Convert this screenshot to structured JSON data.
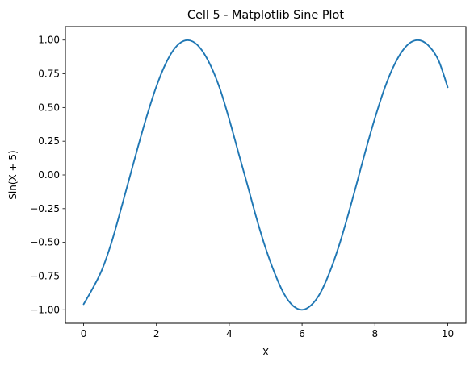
{
  "chart_data": {
    "type": "line",
    "title": "Cell 5 - Matplotlib Sine Plot",
    "xlabel": "X",
    "ylabel": "Sin(X + 5)",
    "xlim": [
      -0.5,
      10.5
    ],
    "ylim": [
      -1.1,
      1.1
    ],
    "grid": false,
    "legend": "none",
    "line_color": "#1f77b4",
    "x_ticks": [
      0,
      2,
      4,
      6,
      8,
      10
    ],
    "x_tick_labels": [
      "0",
      "2",
      "4",
      "6",
      "8",
      "10"
    ],
    "y_ticks": [
      -1.0,
      -0.75,
      -0.5,
      -0.25,
      0.0,
      0.25,
      0.5,
      0.75,
      1.0
    ],
    "y_tick_labels": [
      "−1.00",
      "−0.75",
      "−0.50",
      "−0.25",
      "0.00",
      "0.25",
      "0.50",
      "0.75",
      "1.00"
    ],
    "series": [
      {
        "x": [
          0.0,
          0.25,
          0.5,
          0.75,
          1.0,
          1.25,
          1.5,
          1.75,
          2.0,
          2.25,
          2.5,
          2.75,
          3.0,
          3.25,
          3.5,
          3.75,
          4.0,
          4.25,
          4.5,
          4.75,
          5.0,
          5.25,
          5.5,
          5.75,
          6.0,
          6.25,
          6.5,
          6.75,
          7.0,
          7.25,
          7.5,
          7.75,
          8.0,
          8.25,
          8.5,
          8.75,
          9.0,
          9.25,
          9.5,
          9.75,
          10.0
        ],
        "y": [
          -0.959,
          -0.841,
          -0.706,
          -0.515,
          -0.279,
          -0.032,
          0.215,
          0.449,
          0.657,
          0.823,
          0.938,
          0.994,
          0.989,
          0.924,
          0.804,
          0.634,
          0.412,
          0.167,
          -0.075,
          -0.322,
          -0.544,
          -0.73,
          -0.88,
          -0.97,
          -1.0,
          -0.966,
          -0.876,
          -0.727,
          -0.537,
          -0.31,
          -0.065,
          0.186,
          0.42,
          0.63,
          0.798,
          0.918,
          0.986,
          0.997,
          0.951,
          0.848,
          0.65
        ]
      }
    ]
  }
}
